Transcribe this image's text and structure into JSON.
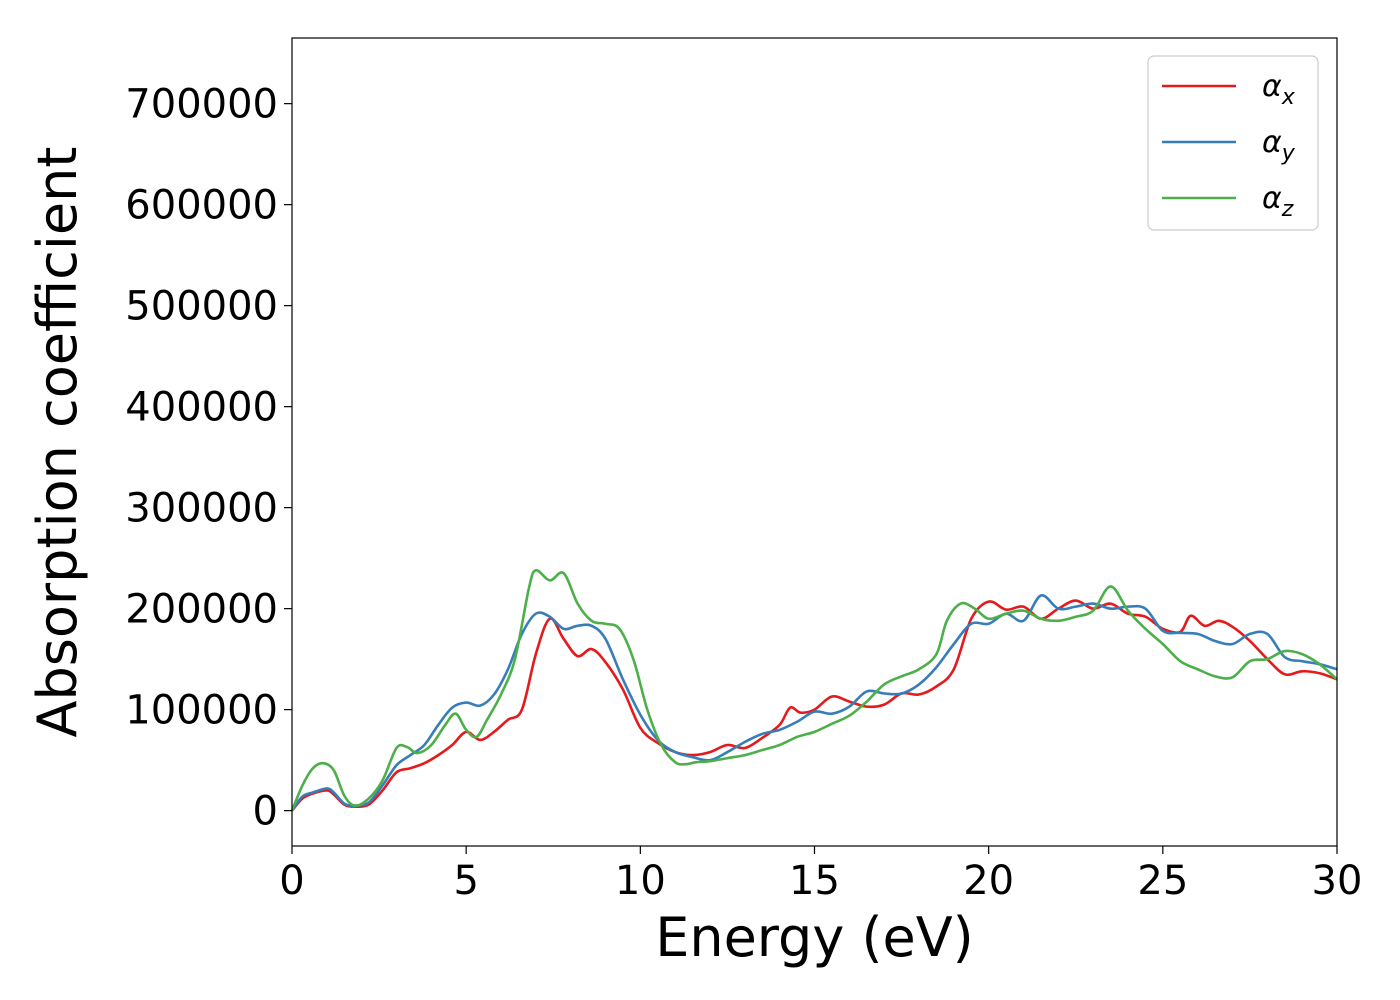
{
  "chart_data": {
    "type": "line",
    "xlabel": "Energy (eV)",
    "ylabel": "Absorption coefficient",
    "xlim": [
      0,
      30
    ],
    "ylim": [
      -35000,
      765000
    ],
    "xticks": [
      0,
      5,
      10,
      15,
      20,
      25,
      30
    ],
    "yticks": [
      0,
      100000,
      200000,
      300000,
      400000,
      500000,
      600000,
      700000
    ],
    "grid": false,
    "legend_position": "top-right",
    "series": [
      {
        "name": "αx",
        "label_main": "α",
        "label_sub": "x",
        "color": "#e41a1c",
        "x": [
          0,
          0.3,
          0.6,
          1.0,
          1.2,
          1.5,
          1.8,
          2.2,
          2.6,
          3.0,
          3.4,
          3.8,
          4.2,
          4.6,
          5.0,
          5.4,
          5.8,
          6.2,
          6.6,
          7.0,
          7.4,
          7.8,
          8.2,
          8.6,
          9.0,
          9.5,
          10.0,
          10.5,
          11.0,
          11.5,
          12.0,
          12.5,
          13.0,
          13.5,
          14.0,
          14.3,
          14.6,
          15.0,
          15.5,
          16.0,
          16.5,
          17.0,
          17.5,
          18.0,
          18.5,
          19.0,
          19.5,
          20.0,
          20.5,
          21.0,
          21.5,
          22.0,
          22.5,
          23.0,
          23.5,
          24.0,
          24.5,
          25.0,
          25.5,
          25.8,
          26.2,
          26.6,
          27.0,
          27.5,
          28.0,
          28.5,
          29.0,
          29.5,
          30.0
        ],
        "values": [
          0,
          12000,
          17000,
          20000,
          16000,
          6000,
          4000,
          6000,
          20000,
          38000,
          42000,
          47000,
          55000,
          65000,
          78000,
          70000,
          78000,
          90000,
          100000,
          155000,
          190000,
          170000,
          153000,
          160000,
          147000,
          120000,
          82000,
          67000,
          58000,
          55000,
          58000,
          65000,
          62000,
          72000,
          85000,
          102000,
          97000,
          100000,
          113000,
          108000,
          103000,
          105000,
          116000,
          115000,
          123000,
          140000,
          190000,
          207000,
          199000,
          202000,
          190000,
          200000,
          208000,
          200000,
          205000,
          195000,
          192000,
          180000,
          177000,
          193000,
          183000,
          188000,
          182000,
          168000,
          150000,
          135000,
          138000,
          136000,
          130000
        ]
      },
      {
        "name": "αy",
        "label_main": "α",
        "label_sub": "y",
        "color": "#377eb8",
        "x": [
          0,
          0.3,
          0.6,
          1.0,
          1.2,
          1.5,
          1.8,
          2.2,
          2.6,
          3.0,
          3.4,
          3.8,
          4.2,
          4.6,
          5.0,
          5.4,
          5.8,
          6.2,
          6.6,
          7.0,
          7.4,
          7.8,
          8.2,
          8.6,
          9.0,
          9.5,
          10.0,
          10.5,
          11.0,
          11.5,
          12.0,
          12.5,
          13.0,
          13.5,
          14.0,
          14.5,
          15.0,
          15.5,
          16.0,
          16.5,
          17.0,
          17.5,
          18.0,
          18.5,
          19.0,
          19.5,
          20.0,
          20.5,
          21.0,
          21.5,
          22.0,
          22.5,
          23.0,
          23.5,
          24.0,
          24.5,
          25.0,
          25.5,
          26.0,
          26.5,
          27.0,
          27.5,
          28.0,
          28.5,
          29.0,
          29.5,
          30.0
        ],
        "values": [
          0,
          14000,
          18000,
          22000,
          18000,
          7000,
          5000,
          8000,
          25000,
          45000,
          55000,
          65000,
          85000,
          102000,
          107000,
          104000,
          115000,
          140000,
          175000,
          195000,
          192000,
          180000,
          183000,
          183000,
          170000,
          130000,
          95000,
          70000,
          58000,
          53000,
          50000,
          58000,
          68000,
          76000,
          80000,
          88000,
          98000,
          96000,
          103000,
          118000,
          116000,
          116000,
          125000,
          142000,
          165000,
          185000,
          185000,
          195000,
          188000,
          213000,
          200000,
          202000,
          205000,
          200000,
          202000,
          200000,
          178000,
          176000,
          175000,
          168000,
          165000,
          175000,
          175000,
          152000,
          148000,
          145000,
          140000
        ]
      },
      {
        "name": "αz",
        "label_main": "α",
        "label_sub": "z",
        "color": "#4daf4a",
        "x": [
          0,
          0.3,
          0.6,
          0.9,
          1.2,
          1.5,
          1.8,
          2.2,
          2.6,
          3.0,
          3.3,
          3.6,
          4.0,
          4.4,
          4.7,
          5.0,
          5.3,
          5.6,
          6.0,
          6.4,
          6.8,
          7.0,
          7.4,
          7.8,
          8.2,
          8.6,
          9.0,
          9.4,
          9.8,
          10.2,
          10.6,
          11.0,
          11.3,
          11.6,
          12.0,
          12.5,
          13.0,
          13.5,
          14.0,
          14.5,
          15.0,
          15.5,
          16.0,
          16.5,
          17.0,
          17.5,
          18.0,
          18.5,
          18.8,
          19.2,
          19.6,
          20.0,
          20.5,
          21.0,
          21.5,
          22.0,
          22.5,
          23.0,
          23.5,
          24.0,
          24.5,
          25.0,
          25.5,
          26.0,
          26.5,
          27.0,
          27.5,
          28.0,
          28.5,
          29.0,
          29.5,
          30.0
        ],
        "values": [
          0,
          25000,
          42000,
          47000,
          40000,
          15000,
          5000,
          12000,
          30000,
          62000,
          63000,
          57000,
          65000,
          85000,
          96000,
          80000,
          73000,
          90000,
          115000,
          150000,
          220000,
          238000,
          228000,
          235000,
          205000,
          188000,
          185000,
          180000,
          150000,
          100000,
          65000,
          48000,
          46000,
          48000,
          49000,
          52000,
          55000,
          60000,
          65000,
          73000,
          78000,
          86000,
          94000,
          108000,
          125000,
          133000,
          140000,
          155000,
          188000,
          205000,
          200000,
          190000,
          195000,
          198000,
          190000,
          188000,
          192000,
          198000,
          222000,
          198000,
          180000,
          165000,
          148000,
          140000,
          133000,
          132000,
          148000,
          150000,
          158000,
          155000,
          145000,
          130000
        ]
      }
    ]
  }
}
